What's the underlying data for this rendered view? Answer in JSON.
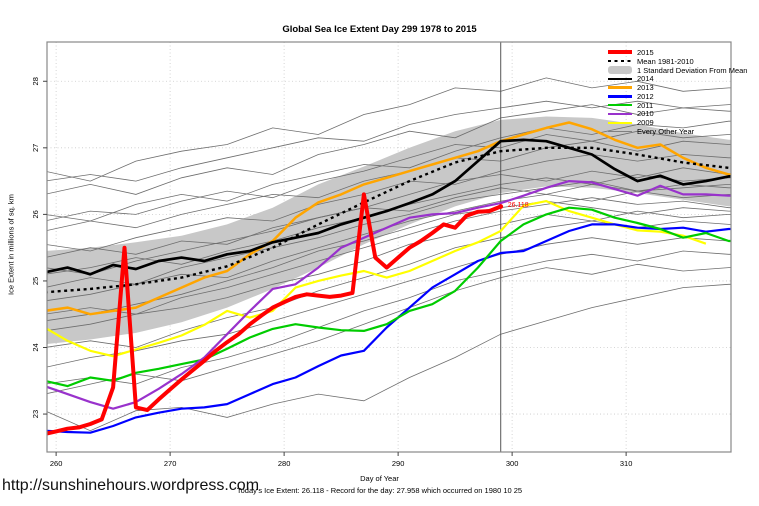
{
  "page": {
    "title": "Global Sea Ice Extent Day 299 1978 to 2015",
    "url_text": "http://sunshinehours.wordpress.com",
    "footer_text": "Today's Ice Extent: 26.118  - Record for the day: 27.958 which occurred on 1980 10 25"
  },
  "chart_data": {
    "type": "line",
    "title": "Global Sea Ice Extent Day 299 1978 to 2015",
    "xlabel": "Day of Year",
    "ylabel": "Ice Extent in millions of sq. km",
    "x_ticks": [
      260,
      270,
      280,
      290,
      300,
      310
    ],
    "y_ticks": [
      23,
      24,
      25,
      26,
      27,
      28
    ],
    "xlim": [
      259.2,
      319.2
    ],
    "ylim": [
      22.43,
      28.59
    ],
    "grid": "dotted",
    "grid_color": "#C9C9C9",
    "marker_day": 299,
    "annotation": {
      "day": 299,
      "value": 26.118,
      "label": "26.118",
      "color": "#FF0000"
    },
    "band": {
      "name": "1 Standard Deviation From Mean",
      "color": "#C8C8C8",
      "d0": 259,
      "step": 4,
      "upper": [
        25.45,
        25.5,
        25.58,
        25.68,
        25.85,
        26.1,
        26.45,
        26.72,
        27.0,
        27.25,
        27.42,
        27.47,
        27.45,
        27.35,
        27.22,
        27.12
      ],
      "lower": [
        24.05,
        24.12,
        24.22,
        24.38,
        24.6,
        24.88,
        25.2,
        25.55,
        25.85,
        26.12,
        26.32,
        26.42,
        26.4,
        26.32,
        26.22,
        26.12
      ]
    },
    "series": [
      {
        "name": "2009",
        "color": "#FFFF00",
        "width": 2.2,
        "d0": 259,
        "step": 2,
        "extend": false,
        "values": [
          24.3,
          24.1,
          23.95,
          23.87,
          23.97,
          24.07,
          24.18,
          24.34,
          24.55,
          24.45,
          24.55,
          24.9,
          25.0,
          25.08,
          25.15,
          25.05,
          25.15,
          25.3,
          25.45,
          25.58,
          25.75,
          26.13,
          26.2,
          26.05,
          25.95,
          25.85,
          25.76,
          25.74,
          25.68,
          25.56
        ]
      },
      {
        "name": "2012",
        "color": "#0000FF",
        "width": 2.2,
        "d0": 259,
        "step": 2,
        "values": [
          22.75,
          22.73,
          22.72,
          22.82,
          22.95,
          23.02,
          23.08,
          23.1,
          23.15,
          23.3,
          23.45,
          23.55,
          23.72,
          23.88,
          23.95,
          24.3,
          24.6,
          24.9,
          25.1,
          25.3,
          25.42,
          25.45,
          25.6,
          25.75,
          25.85,
          25.85,
          25.8,
          25.78,
          25.8,
          25.74,
          25.78
        ]
      },
      {
        "name": "2011",
        "color": "#00CC00",
        "width": 2.2,
        "d0": 259,
        "step": 2,
        "values": [
          23.5,
          23.42,
          23.55,
          23.5,
          23.62,
          23.68,
          23.75,
          23.82,
          23.98,
          24.15,
          24.28,
          24.35,
          24.3,
          24.26,
          24.25,
          24.35,
          24.55,
          24.65,
          24.85,
          25.2,
          25.6,
          25.85,
          26.0,
          26.1,
          26.07,
          25.95,
          25.87,
          25.78,
          25.65,
          25.72,
          25.6
        ]
      },
      {
        "name": "2010",
        "color": "#9932CC",
        "width": 2.2,
        "d0": 259,
        "step": 2,
        "values": [
          23.42,
          23.3,
          23.18,
          23.08,
          23.18,
          23.38,
          23.6,
          23.85,
          24.2,
          24.55,
          24.88,
          24.95,
          25.2,
          25.5,
          25.65,
          25.8,
          25.95,
          26.0,
          26.02,
          26.1,
          26.17,
          26.28,
          26.4,
          26.5,
          26.48,
          26.38,
          26.28,
          26.43,
          26.3,
          26.3,
          26.28
        ]
      },
      {
        "name": "2013",
        "color": "#FFA500",
        "width": 2.5,
        "d0": 259,
        "step": 2,
        "values": [
          24.55,
          24.6,
          24.5,
          24.55,
          24.6,
          24.75,
          24.9,
          25.05,
          25.15,
          25.4,
          25.6,
          25.95,
          26.18,
          26.3,
          26.45,
          26.55,
          26.65,
          26.75,
          26.85,
          26.95,
          27.1,
          27.2,
          27.3,
          27.38,
          27.28,
          27.12,
          27.0,
          27.05,
          26.85,
          26.7,
          26.6
        ]
      },
      {
        "name": "Mean 1981-2010",
        "color": "#000000",
        "width": 2.4,
        "dash": "3 3.5",
        "d0": 259,
        "step": 4,
        "values": [
          24.83,
          24.88,
          24.95,
          25.05,
          25.22,
          25.5,
          25.85,
          26.18,
          26.5,
          26.78,
          26.95,
          27.0,
          27.0,
          26.9,
          26.78,
          26.7
        ]
      },
      {
        "name": "2014",
        "color": "#000000",
        "width": 2.7,
        "d0": 259,
        "step": 2,
        "values": [
          25.13,
          25.2,
          25.1,
          25.24,
          25.18,
          25.3,
          25.35,
          25.3,
          25.4,
          25.45,
          25.58,
          25.65,
          25.72,
          25.85,
          25.95,
          26.05,
          26.17,
          26.3,
          26.5,
          26.8,
          27.1,
          27.12,
          27.1,
          27.0,
          26.9,
          26.68,
          26.5,
          26.58,
          26.45,
          26.5,
          26.57
        ]
      },
      {
        "name": "2015",
        "color": "#FF0000",
        "width": 4,
        "d0": 259,
        "step": 1,
        "extend": false,
        "values": [
          22.7,
          22.74,
          22.78,
          22.8,
          22.85,
          22.92,
          23.4,
          25.5,
          23.1,
          23.06,
          23.22,
          23.37,
          23.52,
          23.66,
          23.8,
          23.95,
          24.08,
          24.2,
          24.35,
          24.48,
          24.6,
          24.68,
          24.76,
          24.8,
          24.78,
          24.76,
          24.78,
          24.82,
          26.3,
          25.35,
          25.2,
          25.35,
          25.5,
          25.6,
          25.72,
          25.85,
          25.8,
          25.98,
          26.04,
          26.05,
          26.118
        ]
      }
    ],
    "other_years": {
      "name": "Every Other Year",
      "color": "#6E6E6E",
      "width": 0.8,
      "d0": 259,
      "step": 4,
      "lines": [
        [
          26.65,
          26.5,
          26.8,
          26.95,
          27.05,
          27.3,
          27.2,
          27.5,
          27.65,
          27.9,
          27.85,
          28.05,
          27.9,
          28.0,
          27.85,
          27.9
        ],
        [
          26.3,
          26.45,
          26.3,
          26.55,
          26.7,
          26.6,
          26.9,
          27.05,
          27.25,
          27.15,
          27.45,
          27.55,
          27.65,
          27.5,
          27.6,
          27.55
        ],
        [
          26.5,
          26.6,
          26.5,
          26.7,
          26.85,
          27.0,
          27.15,
          27.1,
          27.35,
          27.5,
          27.6,
          27.7,
          27.6,
          27.7,
          27.6,
          27.65
        ],
        [
          26.0,
          25.9,
          26.15,
          26.3,
          26.2,
          26.45,
          26.6,
          26.75,
          26.7,
          26.95,
          27.15,
          27.3,
          27.2,
          27.35,
          27.3,
          27.4
        ],
        [
          25.9,
          26.05,
          26.0,
          26.2,
          26.35,
          26.25,
          26.5,
          26.65,
          26.85,
          27.05,
          27.0,
          27.2,
          27.1,
          27.25,
          27.15,
          27.2
        ],
        [
          25.75,
          25.9,
          25.8,
          26.0,
          26.15,
          26.3,
          26.25,
          26.5,
          26.65,
          26.85,
          26.8,
          27.0,
          27.1,
          26.95,
          27.1,
          27.05
        ],
        [
          25.55,
          25.45,
          25.65,
          25.8,
          25.95,
          25.9,
          26.15,
          26.3,
          26.5,
          26.45,
          26.65,
          26.8,
          26.9,
          26.8,
          26.9,
          26.85
        ],
        [
          25.35,
          25.5,
          25.4,
          25.6,
          25.55,
          25.8,
          25.95,
          26.1,
          26.3,
          26.5,
          26.6,
          26.5,
          26.65,
          26.55,
          26.7,
          26.6
        ],
        [
          25.2,
          25.1,
          25.3,
          25.45,
          25.6,
          25.75,
          25.95,
          26.1,
          26.05,
          26.25,
          26.4,
          26.3,
          26.45,
          26.35,
          26.4,
          26.45
        ],
        [
          25.1,
          25.2,
          25.35,
          25.25,
          25.45,
          25.6,
          25.8,
          25.95,
          26.15,
          26.3,
          26.45,
          26.55,
          26.45,
          26.6,
          26.5,
          26.55
        ],
        [
          24.9,
          25.05,
          24.95,
          25.2,
          25.35,
          25.5,
          25.65,
          25.85,
          26.0,
          26.2,
          26.3,
          26.4,
          26.5,
          26.35,
          26.45,
          26.4
        ],
        [
          24.7,
          24.8,
          24.95,
          25.1,
          25.05,
          25.3,
          25.5,
          25.7,
          25.9,
          26.05,
          26.2,
          26.3,
          26.2,
          26.35,
          26.25,
          26.3
        ],
        [
          24.5,
          24.6,
          24.5,
          24.75,
          24.9,
          25.1,
          25.3,
          25.5,
          25.7,
          25.9,
          26.05,
          26.15,
          26.25,
          26.15,
          26.2,
          26.1
        ],
        [
          24.4,
          24.5,
          24.65,
          24.8,
          25.0,
          25.2,
          25.45,
          25.6,
          25.8,
          26.0,
          26.1,
          26.2,
          26.1,
          26.0,
          26.1,
          26.05
        ],
        [
          24.25,
          24.35,
          24.5,
          24.6,
          24.75,
          24.95,
          25.1,
          25.3,
          25.55,
          25.7,
          25.85,
          26.0,
          25.9,
          26.05,
          25.95,
          26.0
        ],
        [
          24.0,
          24.1,
          24.0,
          24.25,
          24.45,
          24.6,
          24.85,
          25.05,
          25.25,
          25.5,
          25.65,
          25.8,
          25.9,
          25.8,
          25.9,
          25.85
        ],
        [
          23.7,
          23.85,
          23.95,
          24.1,
          24.2,
          24.4,
          24.6,
          24.8,
          25.0,
          25.2,
          25.4,
          25.55,
          25.65,
          25.55,
          25.65,
          25.6
        ],
        [
          23.45,
          23.55,
          23.45,
          23.7,
          23.85,
          24.05,
          24.3,
          24.55,
          24.75,
          25.0,
          25.15,
          25.3,
          25.4,
          25.3,
          25.45,
          25.4
        ],
        [
          23.3,
          23.45,
          23.6,
          23.5,
          23.7,
          23.9,
          24.1,
          24.35,
          24.6,
          24.85,
          25.05,
          25.2,
          25.1,
          25.25,
          25.15,
          25.2
        ],
        [
          23.05,
          22.75,
          23.05,
          23.1,
          22.95,
          23.15,
          23.3,
          23.2,
          23.55,
          23.85,
          24.2,
          24.4,
          24.6,
          24.75,
          24.9,
          24.95
        ]
      ]
    },
    "legend": [
      {
        "label": "2015",
        "color": "#FF0000",
        "style": "thick"
      },
      {
        "label": "Mean 1981-2010",
        "color": "#000000",
        "style": "dashed"
      },
      {
        "label": "1 Standard Deviation From Mean",
        "color": "#C8C8C8",
        "style": "band"
      },
      {
        "label": "2014",
        "color": "#000000",
        "style": "line"
      },
      {
        "label": "2013",
        "color": "#FFA500",
        "style": "line"
      },
      {
        "label": "2012",
        "color": "#0000FF",
        "style": "line"
      },
      {
        "label": "2011",
        "color": "#00CC00",
        "style": "line"
      },
      {
        "label": "2010",
        "color": "#9932CC",
        "style": "line"
      },
      {
        "label": "2009",
        "color": "#FFFF00",
        "style": "line"
      },
      {
        "label": "Every Other Year",
        "color": "#808080",
        "style": "thin"
      }
    ]
  }
}
